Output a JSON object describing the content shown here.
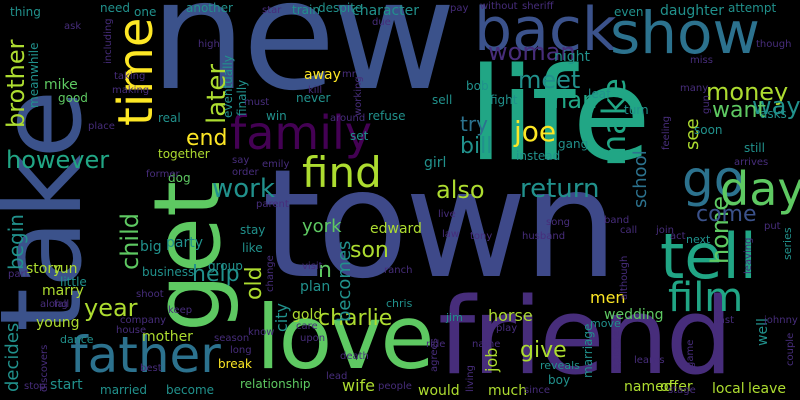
{
  "colors": {
    "background": "#000000",
    "palette": [
      "#440154",
      "#472d7b",
      "#3b528b",
      "#2c728e",
      "#21918c",
      "#28ae80",
      "#5ec962",
      "#addc30",
      "#fde725"
    ]
  },
  "words": {
    "new": "new",
    "town": "town",
    "life": "life",
    "take": "take",
    "friend": "friend",
    "love": "love",
    "get": "get",
    "back": "back",
    "show": "show",
    "father": "father",
    "family": "family",
    "tell": "tell",
    "go": "go",
    "time": "time",
    "find": "find",
    "day": "day",
    "film": "film",
    "make": "make",
    "money": "money",
    "woman": "woman",
    "joe": "joe",
    "return": "return",
    "however": "however",
    "work": "work",
    "also": "also",
    "home": "home",
    "brother": "brother",
    "child": "child",
    "school": "school",
    "see": "see",
    "meet": "meet",
    "man": "man",
    "way": "way",
    "want": "want",
    "come": "come",
    "son": "son",
    "year": "year",
    "charlie": "charlie",
    "give": "give",
    "later": "later",
    "end": "end",
    "bill": "bill",
    "try": "try",
    "help": "help",
    "old": "old",
    "begin": "begin",
    "becomes": "becomes",
    "decides": "decides",
    "mother": "mother",
    "wedding": "wedding",
    "horse": "horse",
    "job": "job",
    "wife": "wife",
    "relationship": "relationship",
    "named": "named",
    "offer": "offer",
    "local": "local",
    "leave": "leave",
    "would": "would",
    "much": "much",
    "men": "men",
    "marriage": "marriage",
    "boy": "boy",
    "start": "start",
    "married": "married",
    "become": "become",
    "young": "young",
    "city": "city",
    "edward": "edward",
    "york": "york",
    "n": "n",
    "plan": "plan",
    "gold": "gold",
    "party": "party",
    "big": "big",
    "story": "story",
    "run": "run",
    "marry": "marry",
    "together": "together",
    "like": "like",
    "stay": "stay",
    "group": "group",
    "business": "business",
    "little": "little",
    "away": "away",
    "mike": "mike",
    "good": "good",
    "brother_small": "brother",
    "meanwhile": "meanwhile",
    "character": "character",
    "train": "train",
    "despite": "despite",
    "daughter": "daughter",
    "attempt": "attempt",
    "even": "even",
    "night": "night",
    "turn": "turn",
    "asks": "asks",
    "bob": "bob",
    "fight": "fight",
    "leaf": "leaf",
    "gang": "gang",
    "soon": "soon",
    "still": "still",
    "instead": "instead",
    "girl": "girl",
    "set": "set",
    "refuse": "refuse",
    "sell": "sell",
    "win": "win",
    "finally": "finally",
    "eventually": "eventually",
    "never": "never",
    "real": "real",
    "dog": "dog",
    "one": "one",
    "need": "need",
    "another": "another",
    "thing": "thing",
    "ask": "ask",
    "high": "high",
    "must": "must",
    "kill": "kill",
    "mr": "mr",
    "due": "due",
    "without": "without",
    "sheriff": "sheriff",
    "pay": "pay",
    "though": "though",
    "miss": "miss",
    "many": "many",
    "gun": "gun",
    "feeling": "feeling",
    "arrives": "arrives",
    "next": "next",
    "series": "series",
    "put": "put",
    "act": "act",
    "join": "join",
    "call": "call",
    "band": "band",
    "song": "song",
    "husband": "husband",
    "tony": "tony",
    "law": "law",
    "live": "live",
    "ranch": "ranch",
    "visit": "visit",
    "chris": "chris",
    "jim": "jim",
    "play": "play",
    "name": "name",
    "living": "living",
    "death": "death",
    "ride": "ride",
    "care": "care",
    "upon": "upon",
    "move": "move",
    "reveals": "reveals",
    "since": "since",
    "episode": "episode",
    "learns": "learns",
    "last": "last",
    "stage": "stage",
    "game": "game",
    "well": "well",
    "johnny": "johnny",
    "couple": "couple",
    "leaving": "leaving",
    "although": "although",
    "people": "people",
    "agrees": "agrees",
    "lead": "lead",
    "long": "long",
    "season": "season",
    "break": "break",
    "know": "know",
    "change": "change",
    "keep": "keep",
    "shoot": "shoot",
    "house": "house",
    "company": "company",
    "dance": "dance",
    "discovers": "discovers",
    "stop": "stop",
    "fall": "fall",
    "along": "along",
    "part": "part",
    "former": "former",
    "best": "best",
    "order": "order",
    "say": "say",
    "emily": "emily",
    "parent": "parent",
    "taking": "taking",
    "making": "making",
    "including": "including",
    "place": "place",
    "star": "star",
    "around": "around",
    "working": "working"
  }
}
